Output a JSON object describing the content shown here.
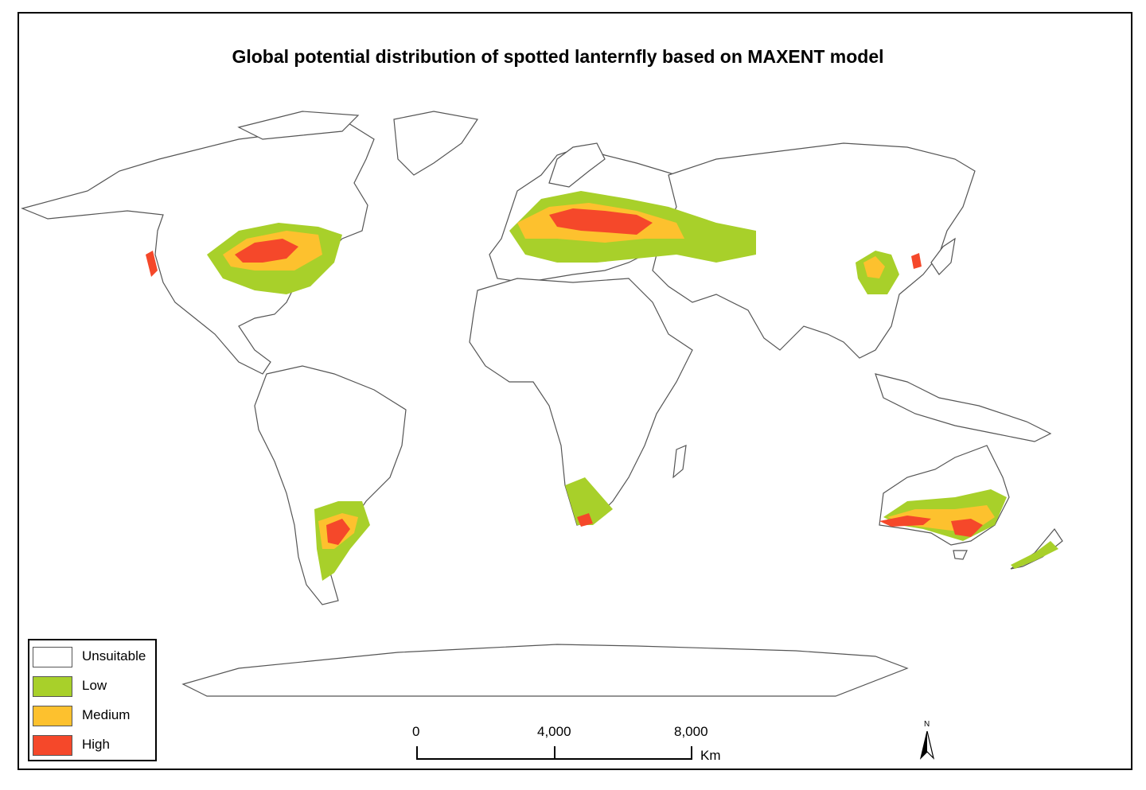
{
  "title": "Global potential distribution of spotted lanternfly based on MAXENT model",
  "legend": [
    {
      "label": "Unsuitable",
      "color": "#ffffff"
    },
    {
      "label": "Low",
      "color": "#a8d02a"
    },
    {
      "label": "Medium",
      "color": "#fdc12e"
    },
    {
      "label": "High",
      "color": "#f5482a"
    }
  ],
  "scale_bar": {
    "ticks": [
      "0",
      "4,000",
      "8,000"
    ],
    "unit": "Km"
  },
  "north_arrow": {
    "label": "N",
    "icon": "north-arrow-icon"
  },
  "colors": {
    "land_outline": "#555555",
    "border": "#000000"
  }
}
